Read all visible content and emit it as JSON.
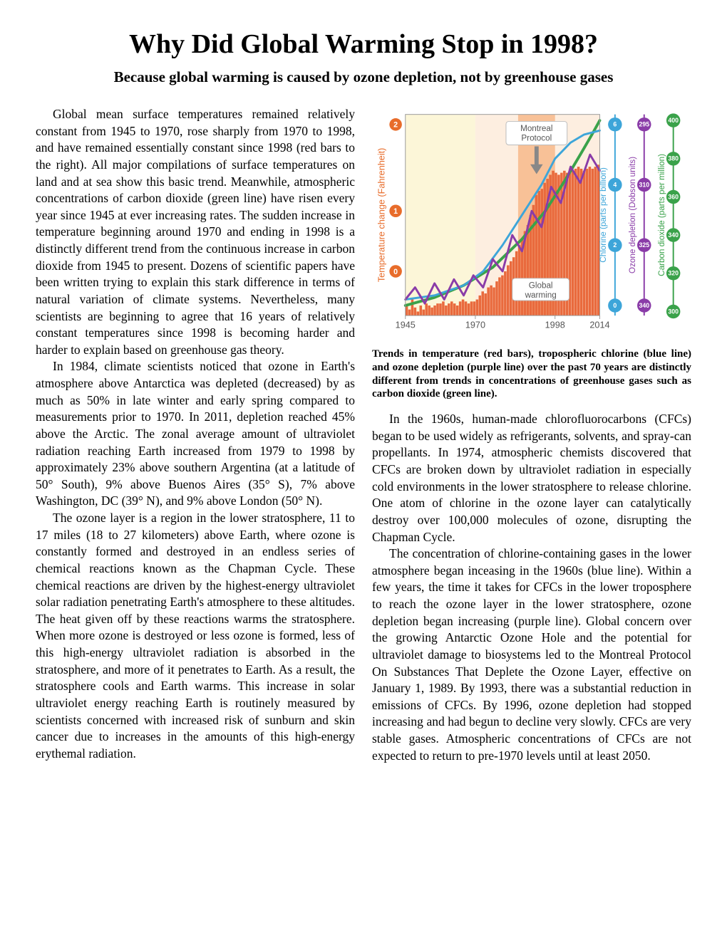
{
  "title": "Why Did Global Warming Stop in 1998?",
  "subtitle": "Because global warming is caused by ozone depletion, not by greenhouse gases",
  "paragraphs": {
    "p1": "Global mean surface temperatures remained relatively constant from 1945 to 1970, rose sharply from 1970 to 1998, and have remained essentially constant since 1998 (red bars to the right). All major compilations of surface temperatures on land and at sea show this basic trend. Meanwhile, atmospheric concentrations of carbon dioxide (green line) have risen every year since 1945 at ever increasing rates. The sudden increase in temperature beginning around 1970 and ending in 1998 is a distinctly different trend from the continuous increase in carbon dioxide from 1945 to present. Dozens of scientific papers have been written trying to explain this stark difference in terms of natural variation of climate systems. Nevertheless, many scientists are beginning to agree that 16 years of relatively constant temperatures since 1998 is becoming harder and harder to explain based on greenhouse gas theory.",
    "p2": "In 1984, climate scientists noticed that ozone in Earth's atmosphere above Antarctica was depleted (decreased) by as much as 50% in late winter and early spring compared to measurements prior to 1970. In 2011, depletion reached 45% above the Arctic. The zonal average amount of ultraviolet radiation reaching Earth increased from 1979 to 1998 by approximately 23% above southern Argentina (at a latitude of 50° South), 9% above Buenos Aires (35° S), 7% above Washington, DC (39° N), and 9% above London (50° N).",
    "p3": "The ozone layer is a region in the lower stratosphere, 11 to 17 miles (18 to 27 kilometers) above Earth, where ozone is constantly formed and destroyed in an endless series of chemical reactions known as the Chapman Cycle. These chemical reactions are driven by the highest-energy ultraviolet solar radiation penetrating Earth's atmosphere to these altitudes. The heat given off by these reactions warms the stratosphere. When more ozone is destroyed or less ozone is formed, less of this high-energy ultraviolet radiation is absorbed in the stratosphere, and more of it penetrates to Earth. As a result, the stratosphere cools and Earth warms. This increase in solar ultraviolet energy reaching Earth is routinely measured by scientists concerned with increased risk of sunburn and skin cancer due to increases in the amounts of this high-energy erythemal radiation.",
    "p4": "In the 1960s, human-made chlorofluorocarbons (CFCs) began to be used widely as refrigerants, solvents, and spray-can propellants. In 1974, atmospheric chemists discovered that CFCs are broken down by ultraviolet radiation in especially cold environments in the lower stratosphere to release chlorine. One atom of chlorine in the ozone layer can catalytically destroy over 100,000 molecules of ozone, disrupting the Chapman Cycle.",
    "p5": "The concentration of chlorine-containing gases in the lower atmosphere began inceasing in the 1960s (blue line). Within a few years, the time it takes for CFCs in the lower troposphere to reach the ozone layer in the lower stratosphere, ozone depletion began increasing (purple line). Global concern over the growing Antarctic Ozone Hole and the potential for ultraviolet damage to biosystems led to the Montreal Protocol On Substances That Deplete the Ozone Layer, effective on January 1, 1989. By 1993, there was a substantial reduction in emissions of CFCs. By 1996, ozone depletion had stopped increasing and had begun to decline very slowly. CFCs are very stable gases. Atmospheric concentrations of CFCs are not expected to return to pre-1970 levels until at least 2050."
  },
  "chart": {
    "caption": "Trends in temperature (red bars), tropospheric chlorine (blue line) and ozone depletion (purple line) over the past 70 years are distinctly different from trends in concentrations of greenhouse gases such as carbon dioxide (green line).",
    "background": "#ffffff",
    "plot_bg_left": "#fcf6d8",
    "plot_bg_right": "#fdeee0",
    "montreal_band": "#f7b98a",
    "montreal_label": "Montreal Protocol",
    "global_warming_label": "Global warming",
    "x_ticks": [
      "1945",
      "1970",
      "1998",
      "2014"
    ],
    "x_positions": [
      0,
      0.36,
      0.77,
      1.0
    ],
    "left_axis": {
      "label": "Temperature change (Fahrenheit)",
      "color": "#e86c2a",
      "ticks": [
        "0",
        "1",
        "2"
      ],
      "tick_positions": [
        0.22,
        0.52,
        0.95
      ]
    },
    "right_axes": [
      {
        "label": "Chlorine (parts per billion)",
        "color": "#3da5d9",
        "ticks": [
          "0",
          "2",
          "4",
          "6"
        ],
        "tick_positions": [
          0.05,
          0.35,
          0.65,
          0.95
        ]
      },
      {
        "label": "Ozone depletion (Dobson units)",
        "color": "#8a3ca8",
        "ticks": [
          "340",
          "325",
          "310",
          "295"
        ],
        "tick_positions": [
          0.05,
          0.35,
          0.65,
          0.95
        ]
      },
      {
        "label": "Carbon dioxide (parts per million)",
        "color": "#3aa24a",
        "ticks": [
          "300",
          "320",
          "340",
          "360",
          "380",
          "400"
        ],
        "tick_positions": [
          0.02,
          0.21,
          0.4,
          0.59,
          0.78,
          0.97
        ]
      }
    ],
    "bars": {
      "color": "#e96a3d",
      "values": [
        0.05,
        0.03,
        0.08,
        0.04,
        0.02,
        0.05,
        0.03,
        0.06,
        0.05,
        0.04,
        0.05,
        0.06,
        0.06,
        0.07,
        0.05,
        0.06,
        0.07,
        0.06,
        0.05,
        0.07,
        0.08,
        0.07,
        0.06,
        0.07,
        0.07,
        0.08,
        0.1,
        0.12,
        0.11,
        0.14,
        0.15,
        0.14,
        0.17,
        0.19,
        0.2,
        0.22,
        0.25,
        0.27,
        0.29,
        0.32,
        0.35,
        0.38,
        0.42,
        0.45,
        0.5,
        0.55,
        0.6,
        0.62,
        0.63,
        0.66,
        0.68,
        0.7,
        0.72,
        0.71,
        0.7,
        0.71,
        0.72,
        0.71,
        0.73,
        0.72,
        0.73,
        0.74,
        0.73,
        0.72,
        0.73,
        0.74,
        0.73,
        0.74,
        0.75
      ]
    },
    "series": {
      "chlorine": {
        "color": "#3da5d9",
        "width": 3,
        "points": [
          [
            0,
            0.08
          ],
          [
            0.15,
            0.1
          ],
          [
            0.3,
            0.15
          ],
          [
            0.4,
            0.22
          ],
          [
            0.5,
            0.35
          ],
          [
            0.6,
            0.5
          ],
          [
            0.7,
            0.65
          ],
          [
            0.77,
            0.78
          ],
          [
            0.85,
            0.86
          ],
          [
            0.92,
            0.9
          ],
          [
            1.0,
            0.92
          ]
        ]
      },
      "ozone": {
        "color": "#8a3ca8",
        "width": 3,
        "points": [
          [
            0,
            0.08
          ],
          [
            0.05,
            0.14
          ],
          [
            0.1,
            0.06
          ],
          [
            0.15,
            0.16
          ],
          [
            0.2,
            0.08
          ],
          [
            0.25,
            0.18
          ],
          [
            0.3,
            0.1
          ],
          [
            0.35,
            0.2
          ],
          [
            0.4,
            0.14
          ],
          [
            0.45,
            0.28
          ],
          [
            0.5,
            0.22
          ],
          [
            0.55,
            0.4
          ],
          [
            0.6,
            0.32
          ],
          [
            0.65,
            0.52
          ],
          [
            0.7,
            0.44
          ],
          [
            0.75,
            0.64
          ],
          [
            0.8,
            0.56
          ],
          [
            0.85,
            0.74
          ],
          [
            0.9,
            0.66
          ],
          [
            0.95,
            0.8
          ],
          [
            1.0,
            0.72
          ]
        ]
      },
      "co2": {
        "color": "#3aa24a",
        "width": 4,
        "points": [
          [
            0,
            0.05
          ],
          [
            0.15,
            0.09
          ],
          [
            0.3,
            0.15
          ],
          [
            0.45,
            0.24
          ],
          [
            0.6,
            0.38
          ],
          [
            0.72,
            0.52
          ],
          [
            0.82,
            0.67
          ],
          [
            0.9,
            0.8
          ],
          [
            0.96,
            0.9
          ],
          [
            1.0,
            0.97
          ]
        ]
      }
    }
  }
}
